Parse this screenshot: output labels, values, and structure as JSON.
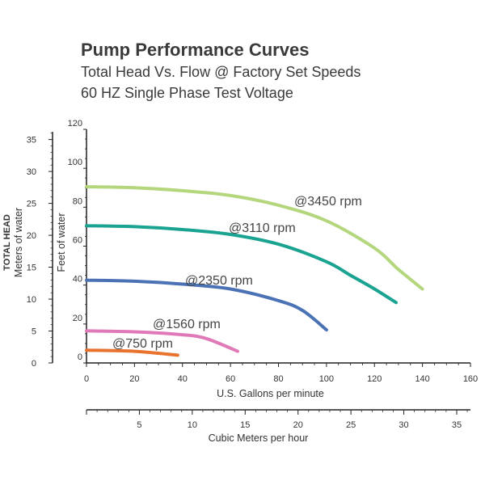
{
  "header": {
    "title": "Pump Performance Curves",
    "subtitle1": "Total Head Vs. Flow @ Factory Set Speeds",
    "subtitle2": "60 HZ Single Phase Test Voltage"
  },
  "chart_data": {
    "type": "line",
    "title": "Pump Performance Curves",
    "subtitle": [
      "Total Head Vs. Flow @ Factory Set Speeds",
      "60 HZ Single Phase Test Voltage"
    ],
    "xlabel": "U.S. Gallons per minute",
    "ylabel": "Feet of water",
    "xlim": [
      0,
      160
    ],
    "ylim": [
      0,
      120
    ],
    "x_ticks": [
      "0",
      "20",
      "40",
      "60",
      "80",
      "100",
      "120",
      "140",
      "160"
    ],
    "y_ticks": [
      "0",
      "20",
      "40",
      "60",
      "80",
      "100",
      "120"
    ],
    "secondary_y": {
      "label_bold": "TOTAL HEAD",
      "label": "Meters of water",
      "ticks": [
        "0",
        "5",
        "10",
        "15",
        "20",
        "25",
        "30",
        "35"
      ],
      "range": [
        0,
        36.6
      ]
    },
    "secondary_x": {
      "label": "Cubic Meters per hour",
      "ticks": [
        "5",
        "10",
        "15",
        "20",
        "25",
        "30",
        "35"
      ],
      "range": [
        0,
        36.3
      ]
    },
    "grid": false,
    "legend": "none",
    "series": [
      {
        "name": "@3450 rpm",
        "color": "#b4d77e",
        "x": [
          0,
          20,
          40,
          60,
          80,
          100,
          120,
          130,
          140
        ],
        "y": [
          90.5,
          90,
          88.5,
          86,
          81,
          73,
          59,
          48,
          38
        ]
      },
      {
        "name": "@3110 rpm",
        "color": "#1aa391",
        "x": [
          0,
          20,
          40,
          60,
          80,
          100,
          110,
          120,
          129
        ],
        "y": [
          70.5,
          70,
          68.5,
          66,
          61,
          52,
          45,
          38,
          31
        ]
      },
      {
        "name": "@2350 rpm",
        "color": "#4a72b5",
        "x": [
          0,
          20,
          40,
          60,
          80,
          90,
          100
        ],
        "y": [
          42.5,
          42,
          40.5,
          38,
          32,
          27,
          17
        ]
      },
      {
        "name": "@1560 rpm",
        "color": "#e079b8",
        "x": [
          0,
          20,
          40,
          50,
          63
        ],
        "y": [
          16.5,
          16,
          14.5,
          12.5,
          6
        ]
      },
      {
        "name": "@750 rpm",
        "color": "#e8732f",
        "x": [
          0,
          20,
          38
        ],
        "y": [
          6.5,
          6,
          4
        ]
      }
    ]
  }
}
